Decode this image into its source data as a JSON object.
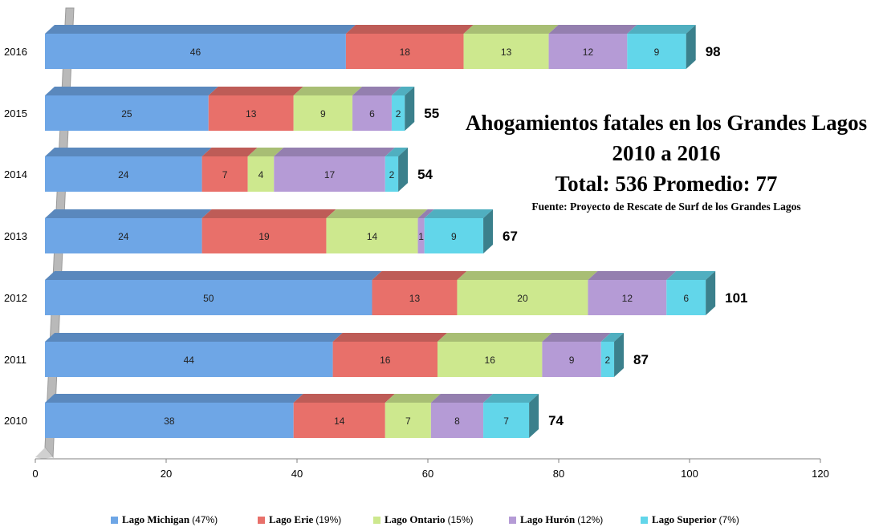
{
  "title_lines": [
    "Ahogamientos fatales en los Grandes Lagos",
    "2010 a 2016",
    "Total: 536  Promedio: 77",
    "Fuente: Proyecto de Rescate de Surf de los Grandes Lagos"
  ],
  "legend": [
    {
      "name": "Lago Michigan",
      "pct": "(47%)"
    },
    {
      "name": "Lago Erie",
      "pct": "(19%)"
    },
    {
      "name": "Lago Ontario",
      "pct": "(15%)"
    },
    {
      "name": "Lago Hurón",
      "pct": "(12%)"
    },
    {
      "name": "Lago Superior",
      "pct": "(7%)"
    }
  ],
  "colors": {
    "michigan": "#6ea6e6",
    "erie": "#e8706a",
    "ontario": "#cde88e",
    "huron": "#b59bd6",
    "superior": "#62d6ea"
  },
  "chart_data": {
    "type": "bar",
    "orientation": "horizontal",
    "stacked": true,
    "three_d": true,
    "categories": [
      "2010",
      "2011",
      "2012",
      "2013",
      "2014",
      "2015",
      "2016"
    ],
    "series": [
      {
        "name": "Lago Michigan",
        "values": [
          38,
          44,
          50,
          24,
          24,
          25,
          46
        ]
      },
      {
        "name": "Lago Erie",
        "values": [
          14,
          16,
          13,
          19,
          7,
          13,
          18
        ]
      },
      {
        "name": "Lago Ontario",
        "values": [
          7,
          16,
          20,
          14,
          4,
          9,
          13
        ]
      },
      {
        "name": "Lago Hurón",
        "values": [
          8,
          9,
          12,
          1,
          17,
          6,
          12
        ]
      },
      {
        "name": "Lago Superior",
        "values": [
          7,
          2,
          6,
          9,
          2,
          2,
          9
        ]
      }
    ],
    "totals": [
      74,
      87,
      101,
      67,
      54,
      55,
      98
    ],
    "xlim": [
      0,
      120
    ],
    "xticks": [
      0,
      20,
      40,
      60,
      80,
      100,
      120
    ],
    "grid": false,
    "legend_position": "bottom"
  }
}
